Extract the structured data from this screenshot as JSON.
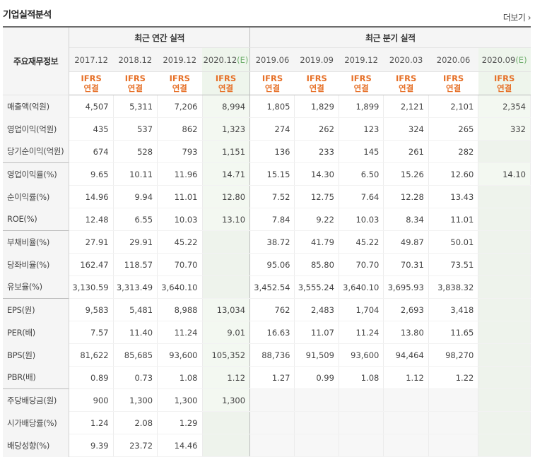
{
  "header": {
    "title": "기업실적분석",
    "more": "더보기"
  },
  "table": {
    "main_head": "주요재무정보",
    "annual_head": "최근 연간 실적",
    "quarter_head": "최근 분기 실적",
    "periods": [
      {
        "label": "2017.12",
        "est": false
      },
      {
        "label": "2018.12",
        "est": false
      },
      {
        "label": "2019.12",
        "est": false
      },
      {
        "label": "2020.12",
        "suffix": "(E)",
        "est": true
      },
      {
        "label": "2019.06",
        "est": false
      },
      {
        "label": "2019.09",
        "est": false
      },
      {
        "label": "2019.12",
        "est": false
      },
      {
        "label": "2020.03",
        "est": false
      },
      {
        "label": "2020.06",
        "est": false
      },
      {
        "label": "2020.09",
        "suffix": "(E)",
        "est": true
      }
    ],
    "ifrs_line1": "IFRS",
    "ifrs_line2": "연결",
    "rows": [
      {
        "label": "매출액(억원)",
        "group": true,
        "values": [
          "4,507",
          "5,311",
          "7,206",
          "8,994",
          "1,805",
          "1,829",
          "1,899",
          "2,121",
          "2,101",
          "2,354"
        ]
      },
      {
        "label": "영업이익(억원)",
        "values": [
          "435",
          "537",
          "862",
          "1,323",
          "274",
          "262",
          "123",
          "324",
          "265",
          "332"
        ]
      },
      {
        "label": "당기순이익(억원)",
        "values": [
          "674",
          "528",
          "793",
          "1,151",
          "136",
          "233",
          "145",
          "261",
          "282",
          ""
        ]
      },
      {
        "label": "영업이익률(%)",
        "group": true,
        "values": [
          "9.65",
          "10.11",
          "11.96",
          "14.71",
          "15.15",
          "14.30",
          "6.50",
          "15.26",
          "12.60",
          "14.10"
        ]
      },
      {
        "label": "순이익률(%)",
        "values": [
          "14.96",
          "9.94",
          "11.01",
          "12.80",
          "7.52",
          "12.75",
          "7.64",
          "12.28",
          "13.43",
          ""
        ]
      },
      {
        "label": "ROE(%)",
        "values": [
          "12.48",
          "6.55",
          "10.03",
          "13.10",
          "7.84",
          "9.22",
          "10.03",
          "8.34",
          "11.01",
          ""
        ]
      },
      {
        "label": "부채비율(%)",
        "group": true,
        "values": [
          "27.91",
          "29.91",
          "45.22",
          "",
          "38.72",
          "41.79",
          "45.22",
          "49.87",
          "50.01",
          ""
        ]
      },
      {
        "label": "당좌비율(%)",
        "values": [
          "162.47",
          "118.57",
          "70.70",
          "",
          "95.06",
          "85.80",
          "70.70",
          "70.31",
          "73.51",
          ""
        ]
      },
      {
        "label": "유보율(%)",
        "values": [
          "3,130.59",
          "3,313.49",
          "3,640.10",
          "",
          "3,452.54",
          "3,555.24",
          "3,640.10",
          "3,695.93",
          "3,838.32",
          ""
        ]
      },
      {
        "label": "EPS(원)",
        "group": true,
        "values": [
          "9,583",
          "5,481",
          "8,988",
          "13,034",
          "762",
          "2,483",
          "1,704",
          "2,693",
          "3,418",
          ""
        ]
      },
      {
        "label": "PER(배)",
        "values": [
          "7.57",
          "11.40",
          "11.24",
          "9.01",
          "16.63",
          "11.07",
          "11.24",
          "13.80",
          "11.65",
          ""
        ]
      },
      {
        "label": "BPS(원)",
        "values": [
          "81,622",
          "85,685",
          "93,600",
          "105,352",
          "88,736",
          "91,509",
          "93,600",
          "94,464",
          "98,270",
          ""
        ]
      },
      {
        "label": "PBR(배)",
        "values": [
          "0.89",
          "0.73",
          "1.08",
          "1.12",
          "1.27",
          "0.99",
          "1.08",
          "1.12",
          "1.22",
          ""
        ]
      },
      {
        "label": "주당배당금(원)",
        "group": true,
        "values": [
          "900",
          "1,300",
          "1,300",
          "1,300",
          "",
          "",
          "",
          "",
          "",
          ""
        ]
      },
      {
        "label": "시가배당률(%)",
        "values": [
          "1.24",
          "2.08",
          "1.29",
          "",
          "",
          "",
          "",
          "",
          "",
          ""
        ]
      },
      {
        "label": "배당성향(%)",
        "values": [
          "9.39",
          "23.72",
          "14.46",
          "",
          "",
          "",
          "",
          "",
          "",
          ""
        ]
      }
    ]
  },
  "colors": {
    "ifrs": "#e66f26",
    "estimate_bg": "#f3f8f1",
    "estimate_suffix": "#6fae6c"
  }
}
